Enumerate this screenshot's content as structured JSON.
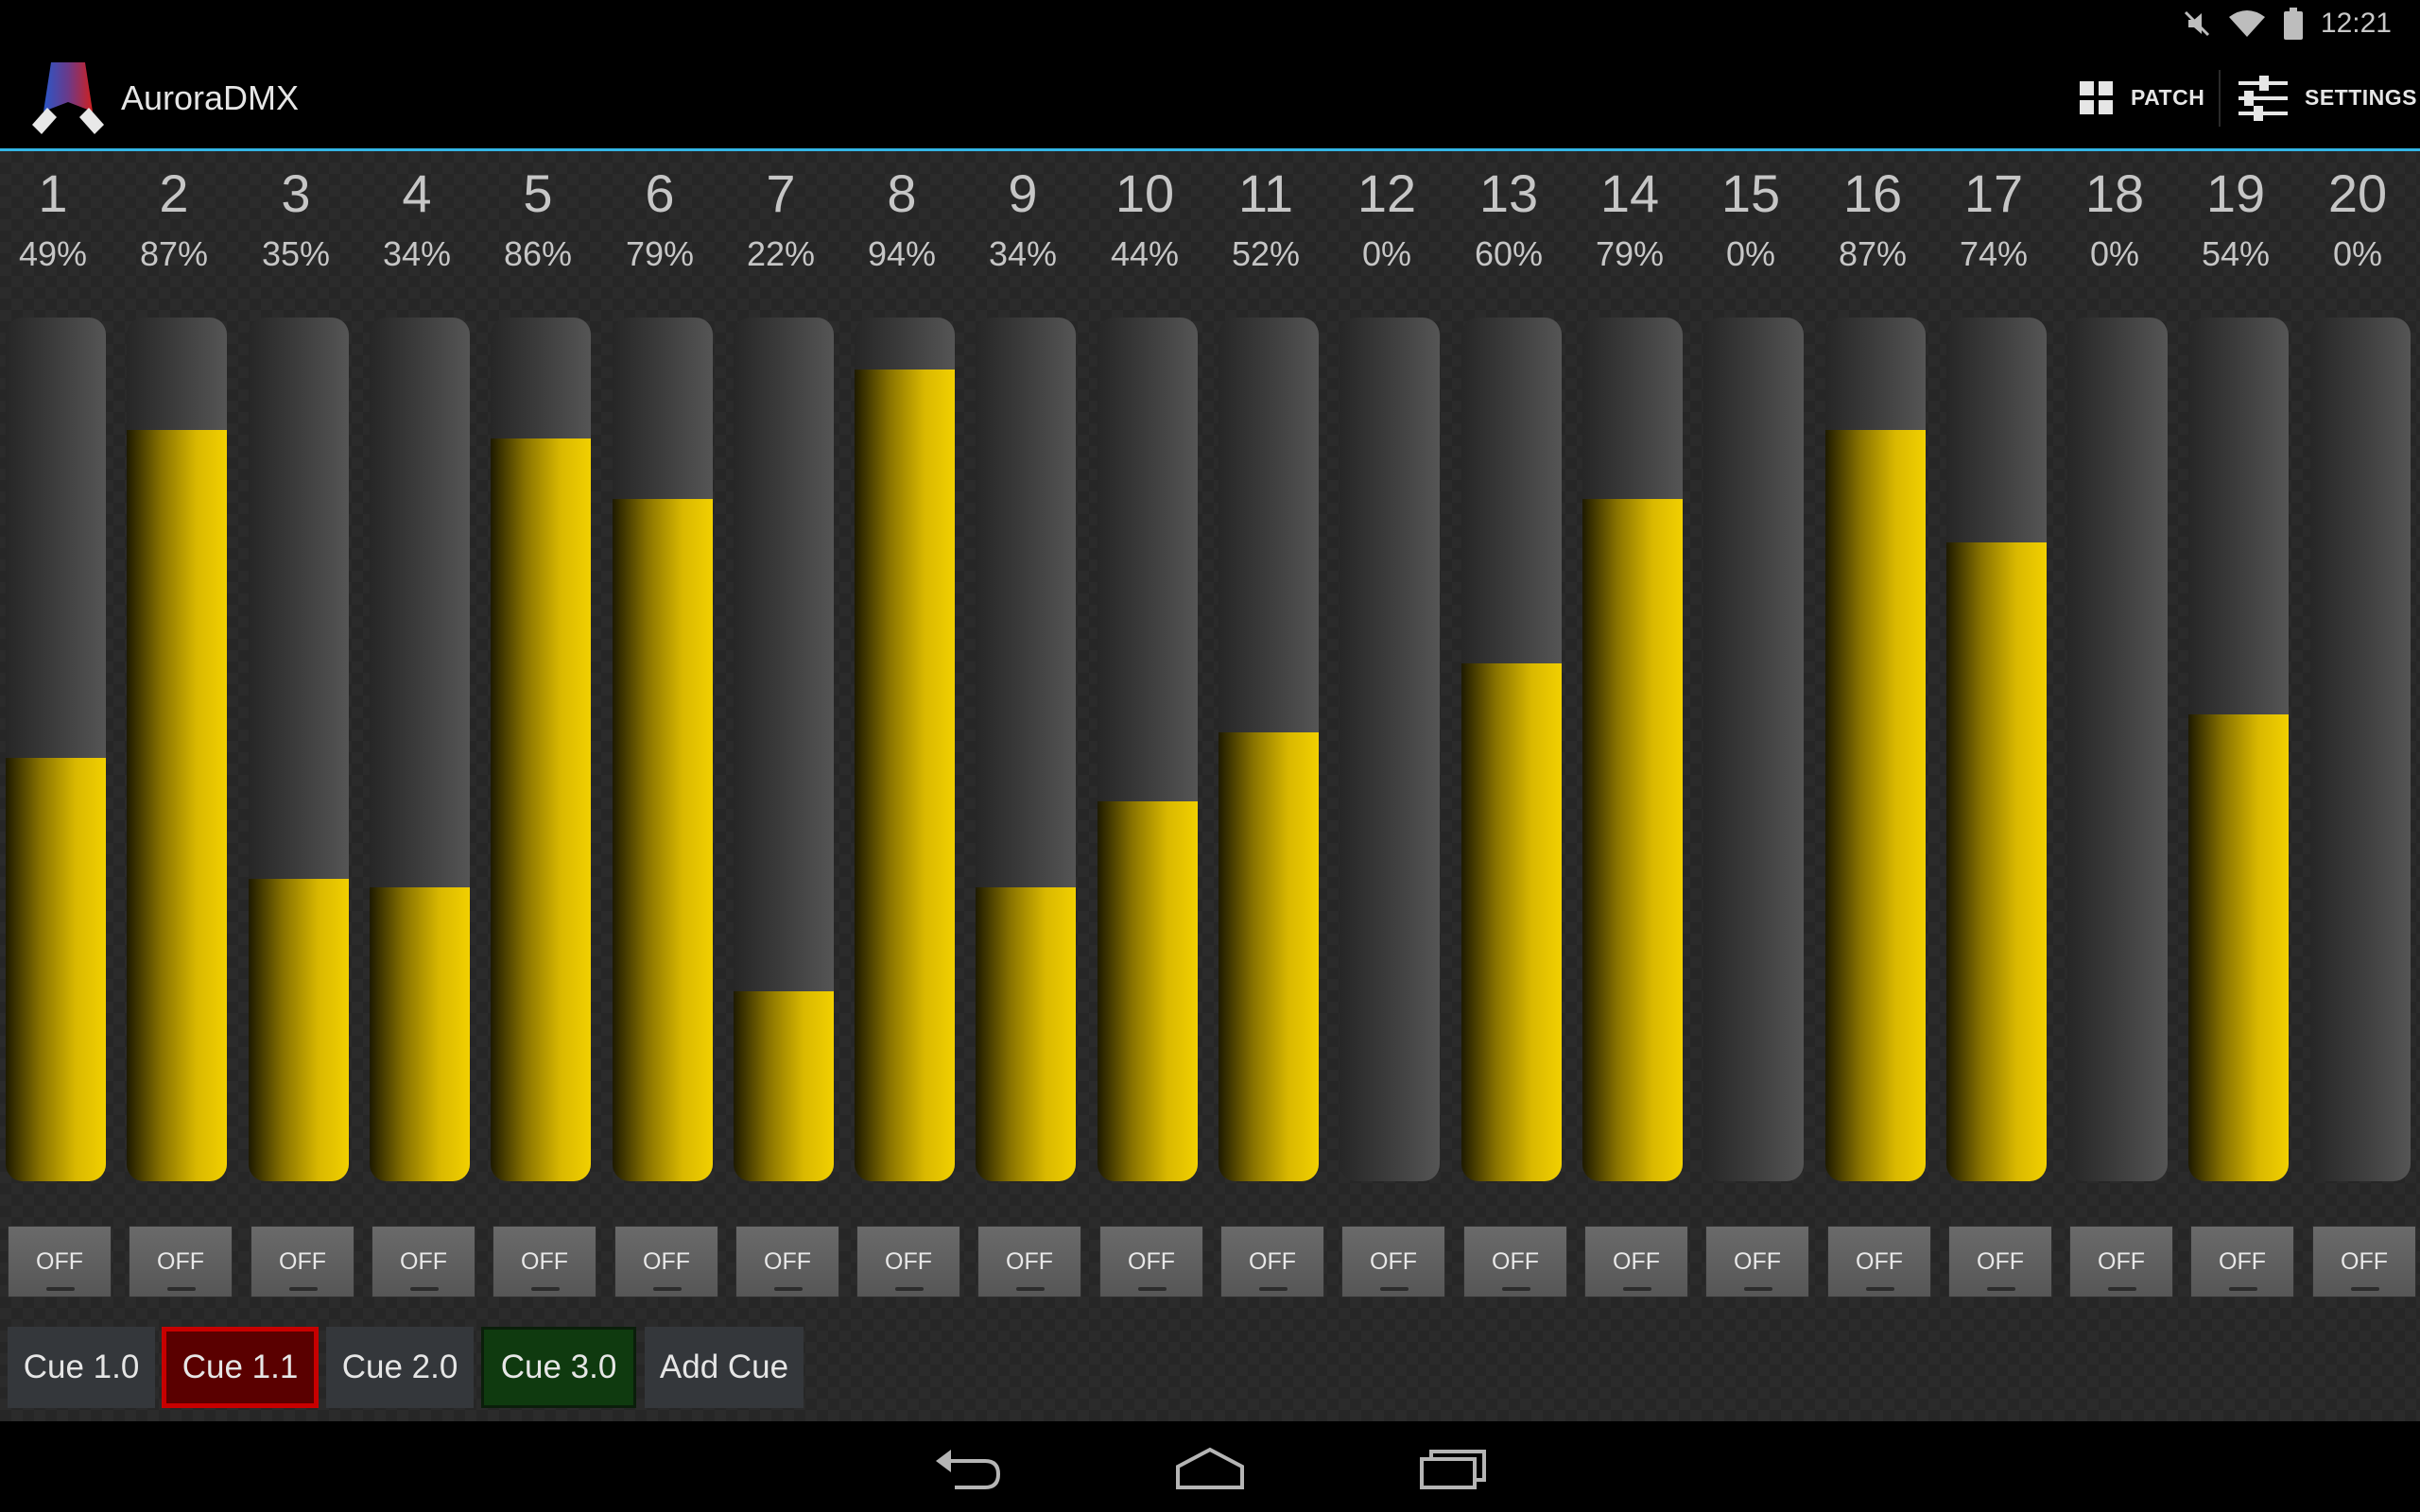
{
  "status": {
    "time": "12:21",
    "icons": [
      "mute-icon",
      "wifi-icon",
      "battery-icon"
    ]
  },
  "app": {
    "title": "AuroraDMX"
  },
  "actions": {
    "patch": "PATCH",
    "settings": "SETTINGS"
  },
  "colors": {
    "accent": "#33b5e5",
    "fader_fill": "#f2d000",
    "cue_selected": "#c80000",
    "cue_active": "#0f3a0f"
  },
  "channels": [
    {
      "number": "1",
      "percent": "49%",
      "level": 0.49,
      "button": "OFF"
    },
    {
      "number": "2",
      "percent": "87%",
      "level": 0.87,
      "button": "OFF"
    },
    {
      "number": "3",
      "percent": "35%",
      "level": 0.35,
      "button": "OFF"
    },
    {
      "number": "4",
      "percent": "34%",
      "level": 0.34,
      "button": "OFF"
    },
    {
      "number": "5",
      "percent": "86%",
      "level": 0.86,
      "button": "OFF"
    },
    {
      "number": "6",
      "percent": "79%",
      "level": 0.79,
      "button": "OFF"
    },
    {
      "number": "7",
      "percent": "22%",
      "level": 0.22,
      "button": "OFF"
    },
    {
      "number": "8",
      "percent": "94%",
      "level": 0.94,
      "button": "OFF"
    },
    {
      "number": "9",
      "percent": "34%",
      "level": 0.34,
      "button": "OFF"
    },
    {
      "number": "10",
      "percent": "44%",
      "level": 0.44,
      "button": "OFF"
    },
    {
      "number": "11",
      "percent": "52%",
      "level": 0.52,
      "button": "OFF"
    },
    {
      "number": "12",
      "percent": "0%",
      "level": 0,
      "button": "OFF"
    },
    {
      "number": "13",
      "percent": "60%",
      "level": 0.6,
      "button": "OFF"
    },
    {
      "number": "14",
      "percent": "79%",
      "level": 0.79,
      "button": "OFF"
    },
    {
      "number": "15",
      "percent": "0%",
      "level": 0,
      "button": "OFF"
    },
    {
      "number": "16",
      "percent": "87%",
      "level": 0.87,
      "button": "OFF"
    },
    {
      "number": "17",
      "percent": "74%",
      "level": 0.74,
      "button": "OFF"
    },
    {
      "number": "18",
      "percent": "0%",
      "level": 0,
      "button": "OFF"
    },
    {
      "number": "19",
      "percent": "54%",
      "level": 0.54,
      "button": "OFF"
    },
    {
      "number": "20",
      "percent": "0%",
      "level": 0,
      "button": "OFF"
    }
  ],
  "cues": [
    {
      "label": "Cue 1.0",
      "state": "normal"
    },
    {
      "label": "Cue 1.1",
      "state": "selected"
    },
    {
      "label": "Cue 2.0",
      "state": "normal"
    },
    {
      "label": "Cue 3.0",
      "state": "active"
    },
    {
      "label": "Add Cue",
      "state": "normal"
    }
  ],
  "nav": {
    "icons": [
      "back-icon",
      "home-icon",
      "recent-apps-icon"
    ]
  }
}
